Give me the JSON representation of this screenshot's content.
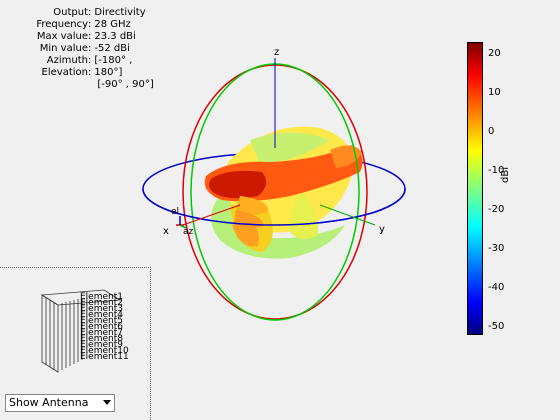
{
  "info": {
    "rows": [
      {
        "key": "Output",
        "value": "Directivity"
      },
      {
        "key": "Frequency",
        "value": "28 GHz"
      },
      {
        "key": "Max value",
        "value": "23.3 dBi"
      },
      {
        "key": "Min value",
        "value": "-52 dBi"
      },
      {
        "key": "Azimuth",
        "value": "[-180° ,"
      },
      {
        "key": "Elevation",
        "value": "180°]"
      },
      {
        "key": "",
        "value": "[-90° , 90°]"
      }
    ]
  },
  "axes": {
    "x": "x",
    "y": "y",
    "z": "z",
    "el": "el",
    "az": "az"
  },
  "colorbar": {
    "ticks": [
      "20",
      "10",
      "0",
      "-10",
      "-20",
      "-30",
      "-40",
      "-50"
    ],
    "unit": "dBi"
  },
  "antenna": {
    "elements": [
      "Element1",
      "Element2",
      "Element3",
      "Element4",
      "Element5",
      "Element6",
      "Element7",
      "Element8",
      "Element9",
      "Element10",
      "Element11"
    ]
  },
  "controls": {
    "view_select": "Show Antenna"
  }
}
